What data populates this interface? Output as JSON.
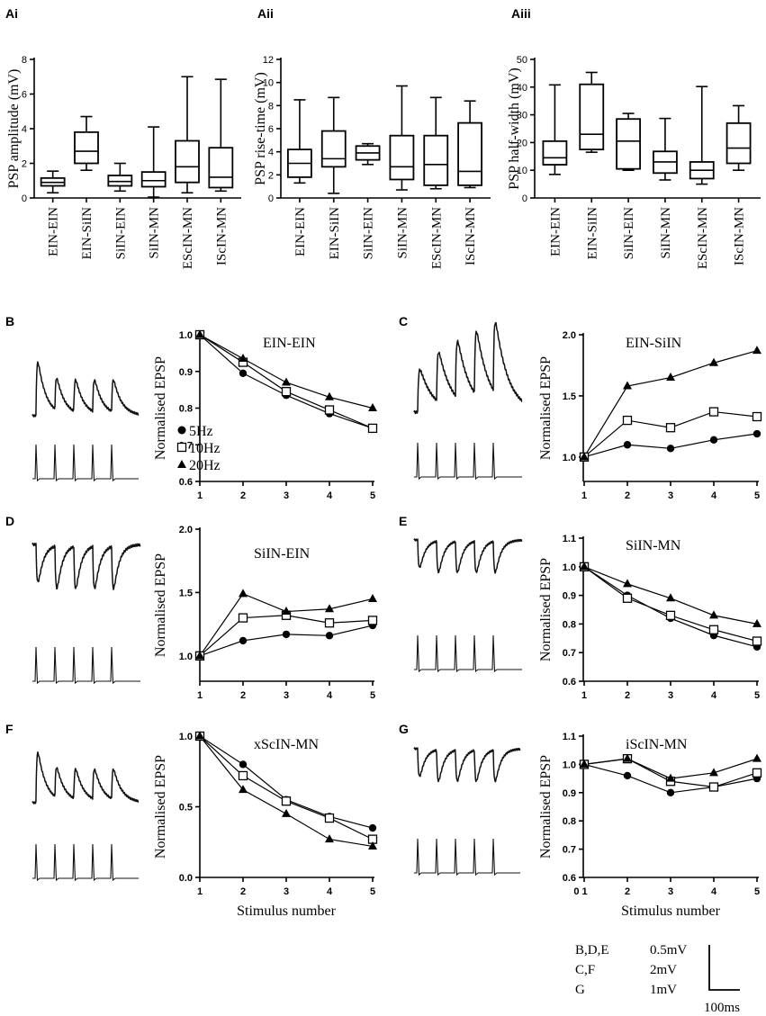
{
  "figure": {
    "panel_labels": {
      "Ai": "Ai",
      "Aii": "Aii",
      "Aiii": "Aiii",
      "B": "B",
      "C": "C",
      "D": "D",
      "E": "E",
      "F": "F",
      "G": "G"
    },
    "scale_bar": {
      "rows": [
        {
          "panels": "B,D,E",
          "value": "0.5mV"
        },
        {
          "panels": "C,F",
          "value": "2mV"
        },
        {
          "panels": "G",
          "value": "1mV"
        }
      ],
      "time": "100ms"
    }
  },
  "chart_data": [
    {
      "id": "Ai",
      "type": "box",
      "ylabel": "PSP amplitude (mV)",
      "ylim": [
        0,
        8
      ],
      "yticks": [
        0,
        2,
        4,
        6,
        8
      ],
      "categories": [
        "EIN-EIN",
        "EIN-SiIN",
        "SiIN-EIN",
        "SiIN-MN",
        "EScIN-MN",
        "IScIN-MN"
      ],
      "boxes": [
        {
          "min": 0.3,
          "q1": 0.7,
          "median": 0.9,
          "q3": 1.15,
          "max": 1.55
        },
        {
          "min": 1.6,
          "q1": 2.0,
          "median": 2.7,
          "q3": 3.8,
          "max": 4.7
        },
        {
          "min": 0.4,
          "q1": 0.7,
          "median": 0.95,
          "q3": 1.3,
          "max": 2.0
        },
        {
          "min": 0.05,
          "q1": 0.65,
          "median": 1.0,
          "q3": 1.5,
          "max": 4.1
        },
        {
          "min": 0.3,
          "q1": 0.9,
          "median": 1.8,
          "q3": 3.3,
          "max": 7.0
        },
        {
          "min": 0.4,
          "q1": 0.6,
          "median": 1.2,
          "q3": 2.9,
          "max": 6.85
        }
      ]
    },
    {
      "id": "Aii",
      "type": "box",
      "ylabel": "PSP rise-time (mV)",
      "ylim": [
        0,
        12
      ],
      "yticks": [
        0,
        2,
        4,
        6,
        8,
        10,
        12
      ],
      "categories": [
        "EIN-EIN",
        "EIN-SiIN",
        "SiIN-EIN",
        "SiIN-MN",
        "EScIN-MN",
        "IScIN-MN"
      ],
      "boxes": [
        {
          "min": 1.3,
          "q1": 1.8,
          "median": 3.0,
          "q3": 4.2,
          "max": 8.5
        },
        {
          "min": 0.4,
          "q1": 2.7,
          "median": 3.4,
          "q3": 5.8,
          "max": 8.7
        },
        {
          "min": 2.9,
          "q1": 3.3,
          "median": 3.9,
          "q3": 4.5,
          "max": 4.7
        },
        {
          "min": 0.7,
          "q1": 1.6,
          "median": 2.7,
          "q3": 5.4,
          "max": 9.7
        },
        {
          "min": 0.8,
          "q1": 1.1,
          "median": 2.9,
          "q3": 5.4,
          "max": 8.7
        },
        {
          "min": 0.9,
          "q1": 1.1,
          "median": 2.3,
          "q3": 6.5,
          "max": 8.4
        }
      ]
    },
    {
      "id": "Aiii",
      "type": "box",
      "ylabel": "PSP half-width (mV)",
      "ylim": [
        0,
        50
      ],
      "yticks": [
        0,
        10,
        20,
        30,
        40,
        50
      ],
      "categories": [
        "EIN-EIN",
        "EIN-SiIN",
        "SiIN-EIN",
        "SiIN-MN",
        "EScIN-MN",
        "IScIN-MN"
      ],
      "boxes": [
        {
          "min": 8.5,
          "q1": 12.0,
          "median": 14.5,
          "q3": 20.5,
          "max": 40.8
        },
        {
          "min": 16.5,
          "q1": 17.5,
          "median": 23.0,
          "q3": 41.0,
          "max": 45.3
        },
        {
          "min": 10.0,
          "q1": 10.5,
          "median": 20.5,
          "q3": 28.5,
          "max": 30.5
        },
        {
          "min": 6.5,
          "q1": 9.0,
          "median": 13.0,
          "q3": 16.8,
          "max": 28.7
        },
        {
          "min": 5.0,
          "q1": 7.0,
          "median": 10.0,
          "q3": 13.0,
          "max": 40.2
        },
        {
          "min": 10.0,
          "q1": 12.5,
          "median": 18.0,
          "q3": 27.0,
          "max": 33.3
        }
      ]
    },
    {
      "id": "B",
      "type": "line",
      "title": "EIN-EIN",
      "ylabel": "Normalised EPSP",
      "ylim": [
        0.6,
        1.0
      ],
      "yticks": [
        "0.6",
        "0.7",
        "0.8",
        "0.9",
        "1.0"
      ],
      "x": [
        1,
        2,
        3,
        4,
        5
      ],
      "xticks": [
        "1",
        "2",
        "3",
        "4",
        "5"
      ],
      "legend": [
        "5Hz",
        "10Hz",
        "20Hz"
      ],
      "series": [
        {
          "name": "5Hz",
          "marker": "circle",
          "values": [
            1.0,
            0.895,
            0.835,
            0.785,
            0.745
          ]
        },
        {
          "name": "10Hz",
          "marker": "square",
          "values": [
            1.0,
            0.925,
            0.845,
            0.795,
            0.745
          ]
        },
        {
          "name": "20Hz",
          "marker": "triangle",
          "values": [
            1.0,
            0.935,
            0.87,
            0.83,
            0.8
          ]
        }
      ]
    },
    {
      "id": "C",
      "type": "line",
      "title": "EIN-SiIN",
      "ylabel": "Normalised EPSP",
      "ylim": [
        0.8,
        2.0
      ],
      "yticks": [
        "1.0",
        "1.5",
        "2.0"
      ],
      "x": [
        1,
        2,
        3,
        4,
        5
      ],
      "xticks": [
        "1",
        "2",
        "3",
        "4",
        "5"
      ],
      "series": [
        {
          "name": "5Hz",
          "marker": "circle",
          "values": [
            1.0,
            1.1,
            1.07,
            1.14,
            1.19
          ]
        },
        {
          "name": "10Hz",
          "marker": "square",
          "values": [
            1.0,
            1.3,
            1.24,
            1.37,
            1.33
          ]
        },
        {
          "name": "20Hz",
          "marker": "triangle",
          "values": [
            1.0,
            1.58,
            1.65,
            1.77,
            1.87
          ]
        }
      ]
    },
    {
      "id": "D",
      "type": "line",
      "title": "SiIN-EIN",
      "ylabel": "Normalised EPSP",
      "ylim": [
        0.8,
        2.0
      ],
      "yticks": [
        "1.0",
        "1.5",
        "2.0"
      ],
      "x": [
        1,
        2,
        3,
        4,
        5
      ],
      "xticks": [
        "1",
        "2",
        "3",
        "4",
        "5"
      ],
      "series": [
        {
          "name": "5Hz",
          "marker": "circle",
          "values": [
            1.0,
            1.12,
            1.17,
            1.16,
            1.24
          ]
        },
        {
          "name": "10Hz",
          "marker": "square",
          "values": [
            1.0,
            1.3,
            1.32,
            1.26,
            1.28
          ]
        },
        {
          "name": "20Hz",
          "marker": "triangle",
          "values": [
            1.0,
            1.49,
            1.35,
            1.37,
            1.45
          ]
        }
      ]
    },
    {
      "id": "E",
      "type": "line",
      "title": "SiIN-MN",
      "ylabel": "Normalised EPSP",
      "ylim": [
        0.6,
        1.1
      ],
      "yticks": [
        "0.6",
        "0.7",
        "0.8",
        "0.9",
        "1.0",
        "1.1"
      ],
      "x": [
        1,
        2,
        3,
        4,
        5
      ],
      "xticks": [
        "1",
        "2",
        "3",
        "4",
        "5"
      ],
      "series": [
        {
          "name": "5Hz",
          "marker": "circle",
          "values": [
            1.0,
            0.9,
            0.82,
            0.76,
            0.72
          ]
        },
        {
          "name": "10Hz",
          "marker": "square",
          "values": [
            1.0,
            0.89,
            0.83,
            0.78,
            0.74
          ]
        },
        {
          "name": "20Hz",
          "marker": "triangle",
          "values": [
            1.0,
            0.94,
            0.89,
            0.83,
            0.8
          ]
        }
      ]
    },
    {
      "id": "F",
      "type": "line",
      "title": "xScIN-MN",
      "ylabel": "Normalised EPSP",
      "xlabel": "Stimulus number",
      "ylim": [
        0.0,
        1.0
      ],
      "yticks": [
        "0.0",
        "0.5",
        "1.0"
      ],
      "x": [
        1,
        2,
        3,
        4,
        5
      ],
      "xticks": [
        "1",
        "2",
        "3",
        "4",
        "5"
      ],
      "series": [
        {
          "name": "5Hz",
          "marker": "circle",
          "values": [
            1.0,
            0.8,
            0.55,
            0.43,
            0.35
          ]
        },
        {
          "name": "10Hz",
          "marker": "square",
          "values": [
            1.0,
            0.72,
            0.54,
            0.42,
            0.27
          ]
        },
        {
          "name": "20Hz",
          "marker": "triangle",
          "values": [
            1.0,
            0.62,
            0.45,
            0.27,
            0.22
          ]
        }
      ]
    },
    {
      "id": "G",
      "type": "line",
      "title": "iScIN-MN",
      "ylabel": "Normalised EPSP",
      "xlabel": "Stimulus number",
      "ylim": [
        0.6,
        1.1
      ],
      "yticks": [
        "0.6",
        "0.7",
        "0.8",
        "0.9",
        "1.0",
        "1.1"
      ],
      "x": [
        1,
        2,
        3,
        4,
        5
      ],
      "xticks": [
        "0 1",
        "2",
        "3",
        "4",
        "5"
      ],
      "series": [
        {
          "name": "5Hz",
          "marker": "circle",
          "values": [
            1.0,
            0.96,
            0.9,
            0.92,
            0.95
          ]
        },
        {
          "name": "10Hz",
          "marker": "square",
          "values": [
            1.0,
            1.02,
            0.94,
            0.92,
            0.97
          ]
        },
        {
          "name": "20Hz",
          "marker": "triangle",
          "values": [
            1.0,
            1.02,
            0.95,
            0.97,
            1.02
          ]
        }
      ]
    }
  ]
}
